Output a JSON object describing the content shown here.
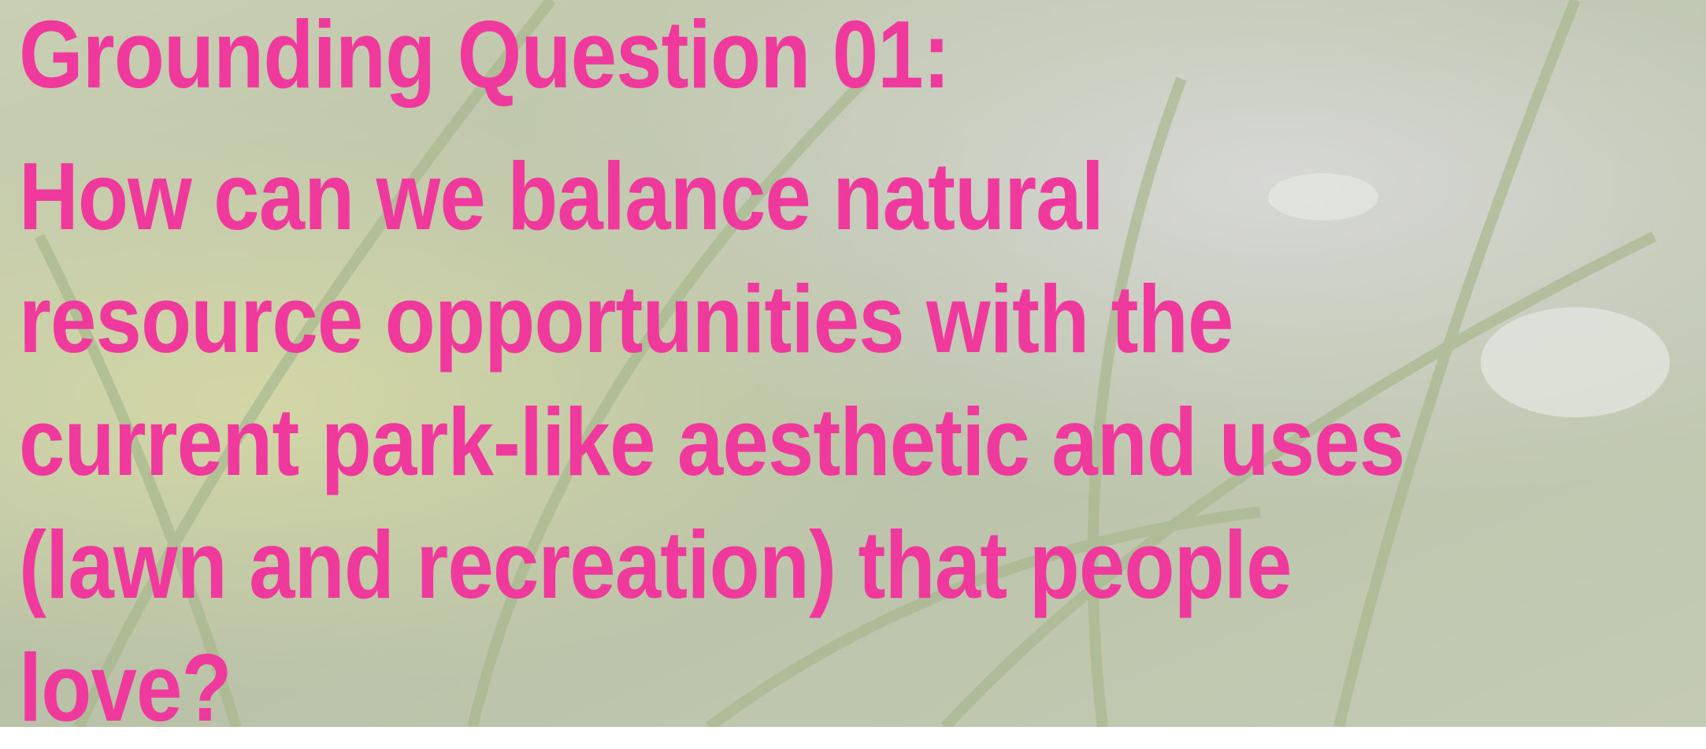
{
  "title": "Grounding Question 01:",
  "question": [
    "How can we balance natural",
    "resource opportunities with the",
    "current park-like aesthetic and uses",
    "(lawn and recreation) that people",
    "love?"
  ]
}
